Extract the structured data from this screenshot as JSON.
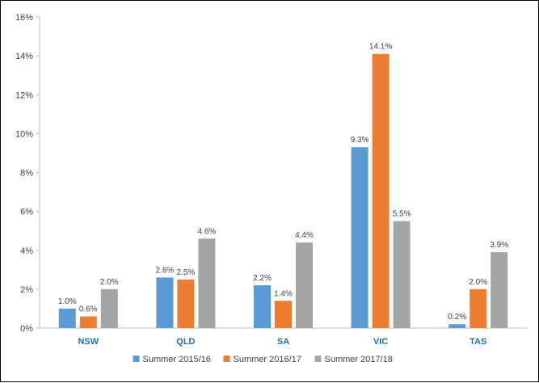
{
  "chart_data": {
    "type": "bar",
    "categories": [
      "NSW",
      "QLD",
      "SA",
      "VIC",
      "TAS"
    ],
    "series": [
      {
        "name": "Summer 2015/16",
        "color": "#5b9bd5",
        "values": [
          1.0,
          2.6,
          2.2,
          9.3,
          0.2
        ],
        "labels": [
          "1.0%",
          "2.6%",
          "2.2%",
          "9.3%",
          "0.2%"
        ]
      },
      {
        "name": "Summer 2016/17",
        "color": "#ed7d31",
        "values": [
          0.6,
          2.5,
          1.4,
          14.1,
          2.0
        ],
        "labels": [
          "0.6%",
          "2.5%",
          "1.4%",
          "14.1%",
          "2.0%"
        ]
      },
      {
        "name": "Summer 2017/18",
        "color": "#a5a5a5",
        "values": [
          2.0,
          4.6,
          4.4,
          5.5,
          3.9
        ],
        "labels": [
          "2.0%",
          "4.6%",
          "4.4%",
          "5.5%",
          "3.9%"
        ]
      }
    ],
    "y_ticks": [
      "0%",
      "2%",
      "4%",
      "6%",
      "8%",
      "10%",
      "12%",
      "14%",
      "16%"
    ],
    "ylim": [
      0,
      16
    ],
    "grid": false,
    "legend_position": "bottom",
    "category_color": "#1f6fb5"
  }
}
